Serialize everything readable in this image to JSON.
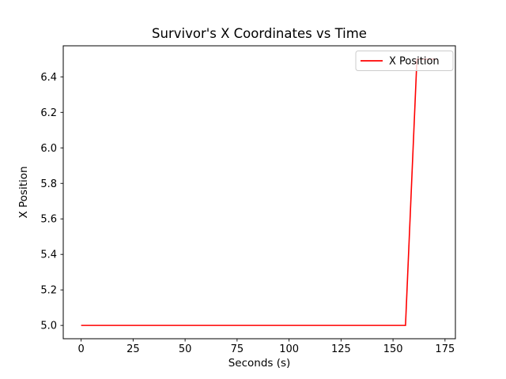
{
  "figure": {
    "background_color": "#ffffff",
    "text_color": "#000000",
    "spine_color": "#000000"
  },
  "chart_data": {
    "type": "line",
    "title": "Survivor's X Coordinates vs Time",
    "xlabel": "Seconds (s)",
    "ylabel": "X Position",
    "grid": false,
    "xlim": [
      -8.6,
      180.0
    ],
    "ylim": [
      4.925,
      6.575
    ],
    "xticks": [
      0,
      25,
      50,
      75,
      100,
      125,
      150,
      175
    ],
    "yticks": [
      "5.0",
      "5.2",
      "5.4",
      "5.6",
      "5.8",
      "6.0",
      "6.2",
      "6.4"
    ],
    "series": [
      {
        "name": "X Position",
        "color": "#ff0000",
        "x": [
          0,
          156,
          161.5,
          171
        ],
        "y": [
          5.0,
          5.0,
          6.5,
          6.5
        ]
      }
    ],
    "legend": {
      "position": "upper right",
      "entries": [
        "X Position"
      ],
      "frame_color": "#cccccc",
      "frame_fill": "#ffffff",
      "frame_alpha": 0.8
    }
  }
}
